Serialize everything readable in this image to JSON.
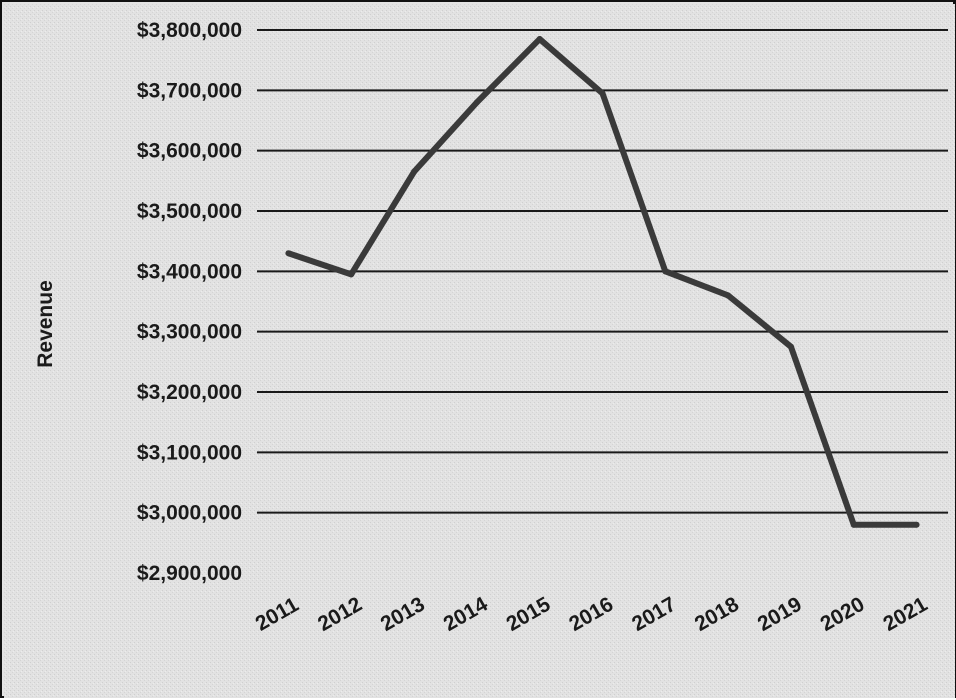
{
  "chart_data": {
    "type": "line",
    "title": "",
    "xlabel": "",
    "ylabel": "Revenue",
    "categories": [
      "2011",
      "2012",
      "2013",
      "2014",
      "2015",
      "2016",
      "2017",
      "2018",
      "2019",
      "2020",
      "2021"
    ],
    "series": [
      {
        "values": [
          3430000,
          3395000,
          3565000,
          3680000,
          3785000,
          3695000,
          3400000,
          3360000,
          3275000,
          2980000,
          2980000
        ]
      }
    ],
    "ylim": [
      2900000,
      3800000
    ],
    "y_tick_values": [
      2900000,
      3000000,
      3100000,
      3200000,
      3300000,
      3400000,
      3500000,
      3600000,
      3700000,
      3800000
    ],
    "y_tick_labels": [
      "$2,900,000",
      "$3,000,000",
      "$3,100,000",
      "$3,200,000",
      "$3,300,000",
      "$3,400,000",
      "$3,500,000",
      "$3,600,000",
      "$3,700,000",
      "$3,800,000"
    ],
    "grid": true,
    "legend": "none",
    "colors": {
      "line": "#3a3a3a",
      "grid": "#1a1a1a",
      "background": "#e4e4e4"
    }
  }
}
